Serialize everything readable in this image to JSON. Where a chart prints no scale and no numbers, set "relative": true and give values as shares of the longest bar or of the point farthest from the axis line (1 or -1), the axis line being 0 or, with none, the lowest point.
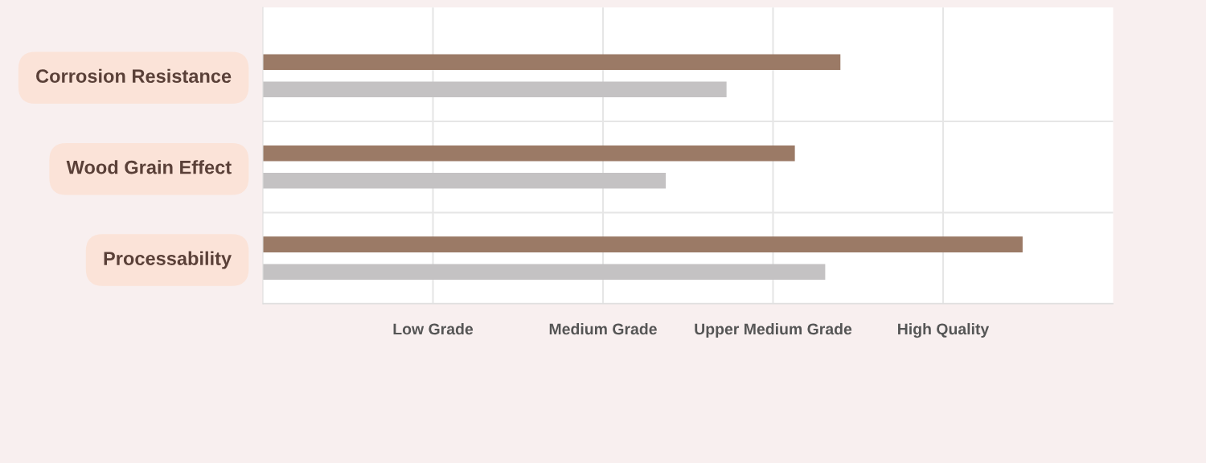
{
  "chart_data": {
    "type": "bar",
    "orientation": "horizontal",
    "relative": true,
    "categories": [
      "Corrosion Resistance",
      "Wood Grain Effect",
      "Processability"
    ],
    "series": [
      {
        "color": "#9b7a66",
        "values": [
          0.76,
          0.7,
          1
        ]
      },
      {
        "color": "#c4c2c3",
        "values": [
          0.61,
          0.53,
          0.74
        ]
      }
    ],
    "annotations": [
      "Low Grade",
      "Medium Grade",
      "Upper Medium Grade",
      "High Quality"
    ],
    "grid": "x",
    "legend": false
  }
}
